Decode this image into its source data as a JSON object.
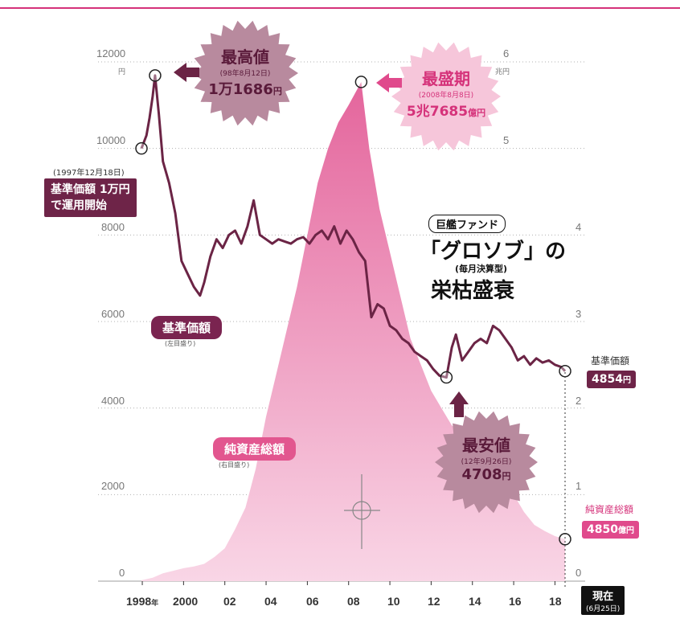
{
  "chart_data": {
    "type": "line+area",
    "left_axis": {
      "ticks": [
        "12000",
        "10000",
        "8000",
        "6000",
        "4000",
        "2000",
        "0"
      ],
      "unit": "円",
      "ylim": [
        0,
        12000
      ]
    },
    "right_axis": {
      "ticks": [
        "6",
        "5",
        "4",
        "3",
        "2",
        "1",
        "0"
      ],
      "unit": "兆円",
      "ylim": [
        0,
        6
      ]
    },
    "x_ticks": [
      "1998",
      "2000",
      "02",
      "04",
      "06",
      "08",
      "10",
      "12",
      "14",
      "16",
      "18"
    ],
    "x_year_suffix": "年",
    "series": [
      {
        "name": "基準価額",
        "note": "(左目盛り)",
        "x": [
          1997.96,
          1998.2,
          1998.35,
          1998.5,
          1998.62,
          1998.8,
          1999.0,
          1999.3,
          1999.6,
          1999.9,
          2000.2,
          2000.5,
          2000.8,
          2001.0,
          2001.3,
          2001.6,
          2001.9,
          2002.2,
          2002.5,
          2002.8,
          2003.1,
          2003.4,
          2003.7,
          2004.0,
          2004.3,
          2004.6,
          2004.9,
          2005.2,
          2005.5,
          2005.8,
          2006.1,
          2006.4,
          2006.7,
          2007.0,
          2007.3,
          2007.6,
          2007.9,
          2008.2,
          2008.5,
          2008.8,
          2009.1,
          2009.4,
          2009.7,
          2010.0,
          2010.3,
          2010.6,
          2010.9,
          2011.2,
          2011.5,
          2011.8,
          2012.1,
          2012.4,
          2012.74,
          2013.0,
          2013.2,
          2013.5,
          2013.8,
          2014.1,
          2014.4,
          2014.7,
          2015.0,
          2015.3,
          2015.6,
          2015.9,
          2016.2,
          2016.5,
          2016.8,
          2017.1,
          2017.4,
          2017.7,
          2018.0,
          2018.3,
          2018.49
        ],
        "values": [
          10000,
          10300,
          10700,
          11200,
          11686,
          10800,
          9700,
          9200,
          8500,
          7400,
          7100,
          6800,
          6600,
          6900,
          7500,
          7900,
          7700,
          8000,
          8100,
          7800,
          8200,
          8800,
          8000,
          7900,
          7800,
          7900,
          7850,
          7800,
          7900,
          7950,
          7800,
          8000,
          8100,
          7900,
          8200,
          7800,
          8100,
          7900,
          7600,
          7400,
          6100,
          6400,
          6300,
          5900,
          5800,
          5600,
          5500,
          5300,
          5200,
          5100,
          4900,
          4750,
          4708,
          5400,
          5700,
          5100,
          5300,
          5500,
          5600,
          5500,
          5900,
          5800,
          5600,
          5400,
          5100,
          5200,
          5000,
          5150,
          5050,
          5100,
          5000,
          4950,
          4854
        ]
      },
      {
        "name": "純資産総額",
        "note": "(右目盛り)",
        "x": [
          1997.96,
          1998.5,
          1999.0,
          1999.5,
          2000.0,
          2000.5,
          2001.0,
          2001.5,
          2002.0,
          2002.5,
          2003.0,
          2003.5,
          2004.0,
          2004.5,
          2005.0,
          2005.5,
          2006.0,
          2006.5,
          2007.0,
          2007.5,
          2008.0,
          2008.61,
          2009.0,
          2009.5,
          2010.0,
          2010.5,
          2011.0,
          2011.5,
          2012.0,
          2012.5,
          2013.0,
          2013.5,
          2014.0,
          2014.5,
          2015.0,
          2015.5,
          2016.0,
          2016.5,
          2017.0,
          2017.5,
          2018.0,
          2018.49
        ],
        "values": [
          0.01,
          0.04,
          0.09,
          0.12,
          0.15,
          0.17,
          0.2,
          0.28,
          0.38,
          0.6,
          0.85,
          1.3,
          1.9,
          2.4,
          2.9,
          3.4,
          4.0,
          4.6,
          5.0,
          5.3,
          5.5,
          5.768,
          5.0,
          4.3,
          3.8,
          3.3,
          2.8,
          2.5,
          2.2,
          2.0,
          1.8,
          1.7,
          1.65,
          1.55,
          1.4,
          1.25,
          1.0,
          0.8,
          0.65,
          0.58,
          0.52,
          0.485
        ]
      }
    ]
  },
  "callouts": {
    "start": {
      "date": "(1997年12月18日)",
      "line1": "基準価額 1万円",
      "line2": "で運用開始"
    },
    "high": {
      "label": "最高値",
      "date": "(98年8月12日)",
      "value": "1万1686",
      "unit": "円"
    },
    "peak": {
      "label": "最盛期",
      "date": "(2008年8月8日)",
      "value": "5兆7685",
      "unit": "億円"
    },
    "low": {
      "label": "最安値",
      "date": "(12年9月26日)",
      "value": "4708",
      "unit": "円"
    }
  },
  "labels": {
    "nav_pill": "基準価額",
    "nav_note": "(左目盛り)",
    "aum_pill": "純資産総額",
    "aum_note": "(右目盛り)",
    "nav_end_title": "基準価額",
    "nav_end_value": "4854",
    "nav_end_unit": "円",
    "aum_end_title": "純資産総額",
    "aum_end_value": "4850",
    "aum_end_unit": "億円",
    "now": "現在",
    "now_date": "(6月25日)"
  },
  "title": {
    "tag": "巨艦ファンド",
    "main": "「グロソブ」の",
    "sub": "(毎月決算型)",
    "line3": "栄枯盛衰"
  },
  "colors": {
    "nav_line": "#6b2445",
    "area_top": "#e4659c",
    "area_bottom": "#f8d3e4",
    "accent": "#d5327a",
    "grid": "#b0b0b0"
  }
}
